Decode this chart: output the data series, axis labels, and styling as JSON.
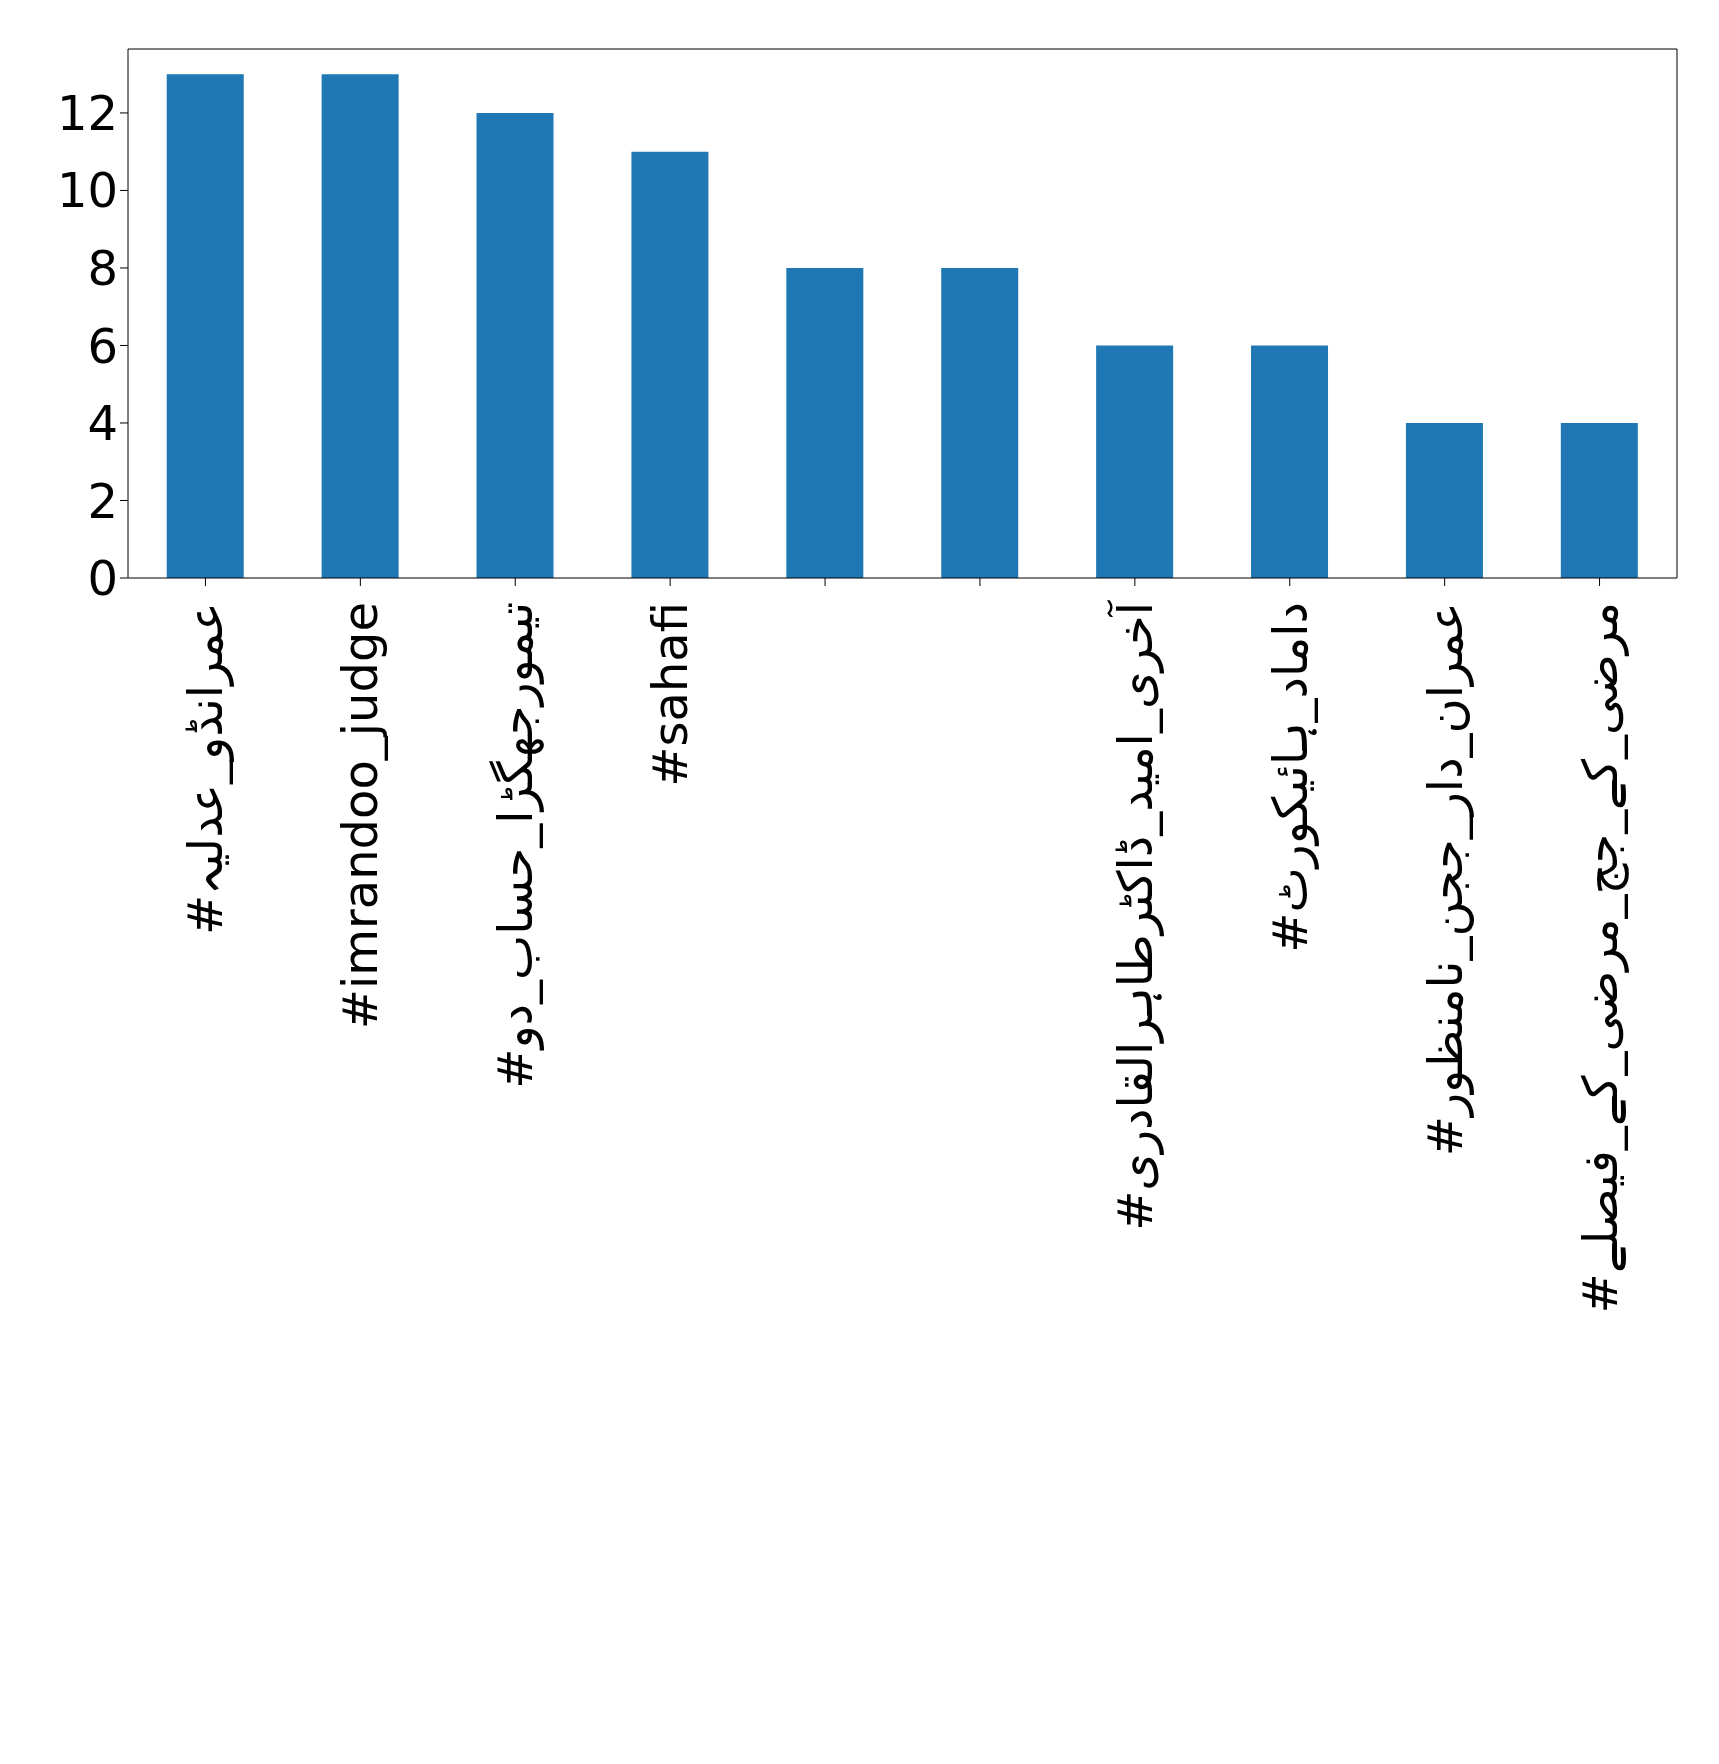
{
  "chart_data": {
    "type": "bar",
    "categories": [
      "#عمرانڈو_عدلیہ",
      "#imrandoo_judge",
      "#تیمورجھگڑا_حساب_دو",
      "#sahafi",
      null,
      null,
      "#آخری_امید_ڈاکٹرطاہرالقادری",
      "#داماد_ہائیکورٹ",
      "#عمران_دار_ججن_نامنظور",
      "#مرضی_کے_جج_مرضی_کے_فیصلے"
    ],
    "values": [
      13,
      13,
      12,
      11,
      8,
      8,
      6,
      6,
      4,
      4
    ],
    "color": "#1f77b4",
    "ylim": [
      0,
      13.65
    ],
    "yticks": [
      0,
      2,
      4,
      6,
      8,
      10,
      12
    ],
    "grid": false,
    "legend": false
  }
}
